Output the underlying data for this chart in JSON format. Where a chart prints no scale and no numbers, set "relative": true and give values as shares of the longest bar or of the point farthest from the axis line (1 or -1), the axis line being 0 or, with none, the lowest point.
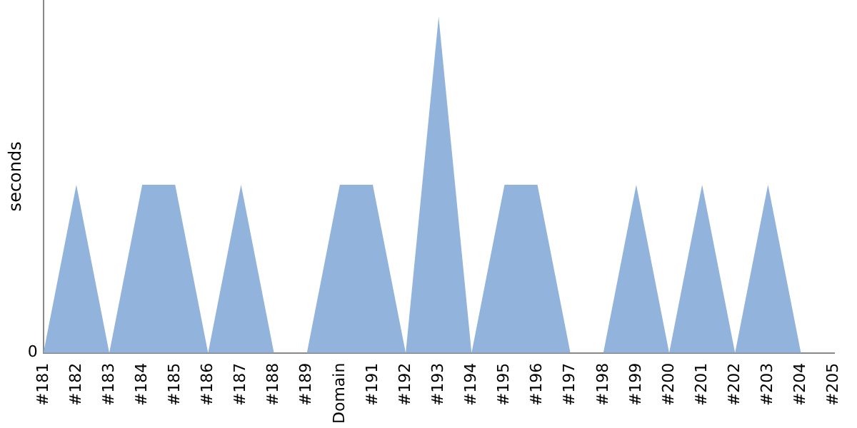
{
  "chart_data": {
    "type": "area",
    "ylabel": "seconds",
    "relative": true,
    "annotations": [
      "0"
    ],
    "grid": false,
    "legend": false,
    "categories": [
      "#181",
      "#182",
      "#183",
      "#184",
      "#185",
      "#186",
      "#187",
      "#188",
      "#189",
      "Domain",
      "#191",
      "#192",
      "#193",
      "#194",
      "#195",
      "#196",
      "#197",
      "#198",
      "#199",
      "#200",
      "#201",
      "#202",
      "#203",
      "#204",
      "#205"
    ],
    "series": [
      {
        "color": "#92b4dc",
        "values": [
          0,
          0.5,
          0,
          0.5,
          0.5,
          0,
          0.5,
          0,
          0,
          0.5,
          0.5,
          0,
          1,
          0,
          0.5,
          0.5,
          0,
          0,
          0.5,
          0,
          0.5,
          0,
          0.5,
          0,
          0
        ]
      }
    ]
  }
}
